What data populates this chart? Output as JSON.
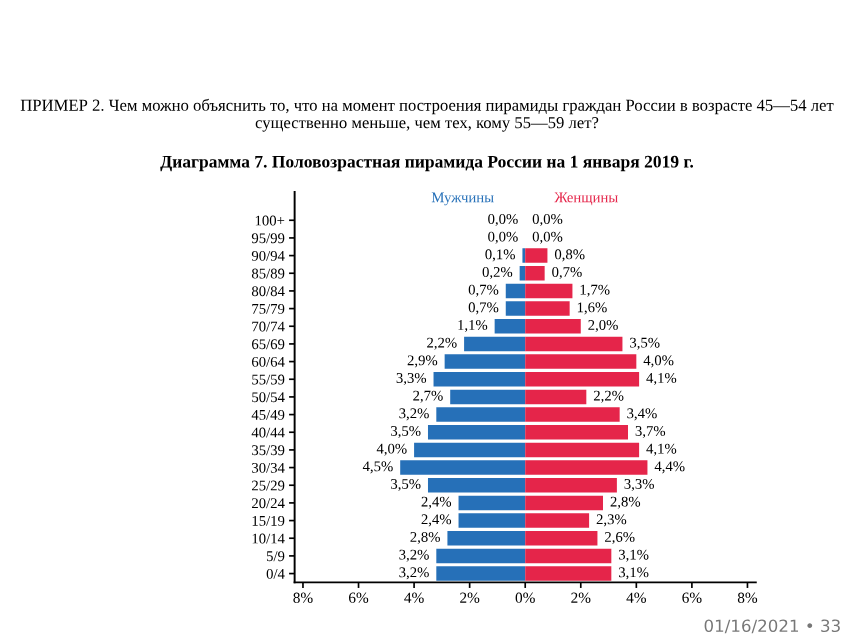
{
  "chart_data": {
    "type": "bar",
    "orientation": "horizontal",
    "stacked": false,
    "title": "Диаграмма 7. Половозрастная пирамида России на 1 января 2019 г.",
    "annotations": [
      "ПРИМЕР 2. Чем можно объяснить то, что на момент построения пирамиды граждан России в возрасте 45—54 лет существенно меньше, чем тех, кому 55—59 лет?",
      "01/16/2021 • 33"
    ],
    "categories": [
      "100+",
      "95/99",
      "90/94",
      "85/89",
      "80/84",
      "75/79",
      "70/74",
      "65/69",
      "60/64",
      "55/59",
      "50/54",
      "45/49",
      "40/44",
      "35/39",
      "30/34",
      "25/29",
      "20/24",
      "15/19",
      "10/14",
      "5/9",
      "0/4"
    ],
    "series": [
      {
        "name": "Мужчины",
        "color": "#2670b8",
        "base": [
          null,
          null,
          -0.1,
          -0.2,
          -0.7,
          -0.7,
          -1.1,
          -2.2,
          -2.9,
          -3.3,
          -2.7,
          -3.2,
          -3.5,
          -4.0,
          -4.5,
          -3.5,
          -2.4,
          -2.4,
          -2.8,
          -3.2,
          -3.2
        ],
        "values": [
          0.0,
          0.0,
          0.1,
          0.2,
          0.7,
          0.7,
          1.1,
          2.2,
          2.9,
          3.3,
          2.7,
          3.2,
          3.5,
          4.0,
          4.5,
          3.5,
          2.4,
          2.4,
          2.8,
          3.2,
          3.2
        ],
        "value_labels": [
          "0,0%",
          "0,0%",
          "0,1%",
          "0,2%",
          "0,7%",
          "0,7%",
          "1,1%",
          "2,2%",
          "2,9%",
          "3,3%",
          "2,7%",
          "3,2%",
          "3,5%",
          "4,0%",
          "4,5%",
          "3,5%",
          "2,4%",
          "2,4%",
          "2,8%",
          "3,2%",
          "3,2%"
        ]
      },
      {
        "name": "Женщины",
        "color": "#e5254a",
        "values": [
          0.0,
          0.0,
          0.8,
          0.7,
          1.7,
          1.6,
          2.0,
          3.5,
          4.0,
          4.1,
          2.2,
          3.4,
          3.7,
          4.1,
          4.4,
          3.3,
          2.8,
          2.3,
          2.6,
          3.1,
          3.1
        ],
        "value_labels": [
          "0,0%",
          "0,0%",
          "0,8%",
          "0,7%",
          "1,7%",
          "1,6%",
          "2,0%",
          "3,5%",
          "4,0%",
          "4,1%",
          "2,2%",
          "3,4%",
          "3,7%",
          "4,1%",
          "4,4%",
          "3,3%",
          "2,8%",
          "2,3%",
          "2,6%",
          "3,1%",
          "3,1%"
        ]
      }
    ],
    "xlim": [
      -8.3,
      8.3
    ],
    "xticks": [
      {
        "value": -8,
        "label": "8%"
      },
      {
        "value": -6,
        "label": "6%"
      },
      {
        "value": -4,
        "label": "4%"
      },
      {
        "value": -2,
        "label": "2%"
      },
      {
        "value": 0,
        "label": "0%"
      },
      {
        "value": 2,
        "label": "2%"
      },
      {
        "value": 4,
        "label": "4%"
      },
      {
        "value": 6,
        "label": "6%"
      },
      {
        "value": 8,
        "label": "8%"
      }
    ],
    "grid": false,
    "legend": false
  }
}
